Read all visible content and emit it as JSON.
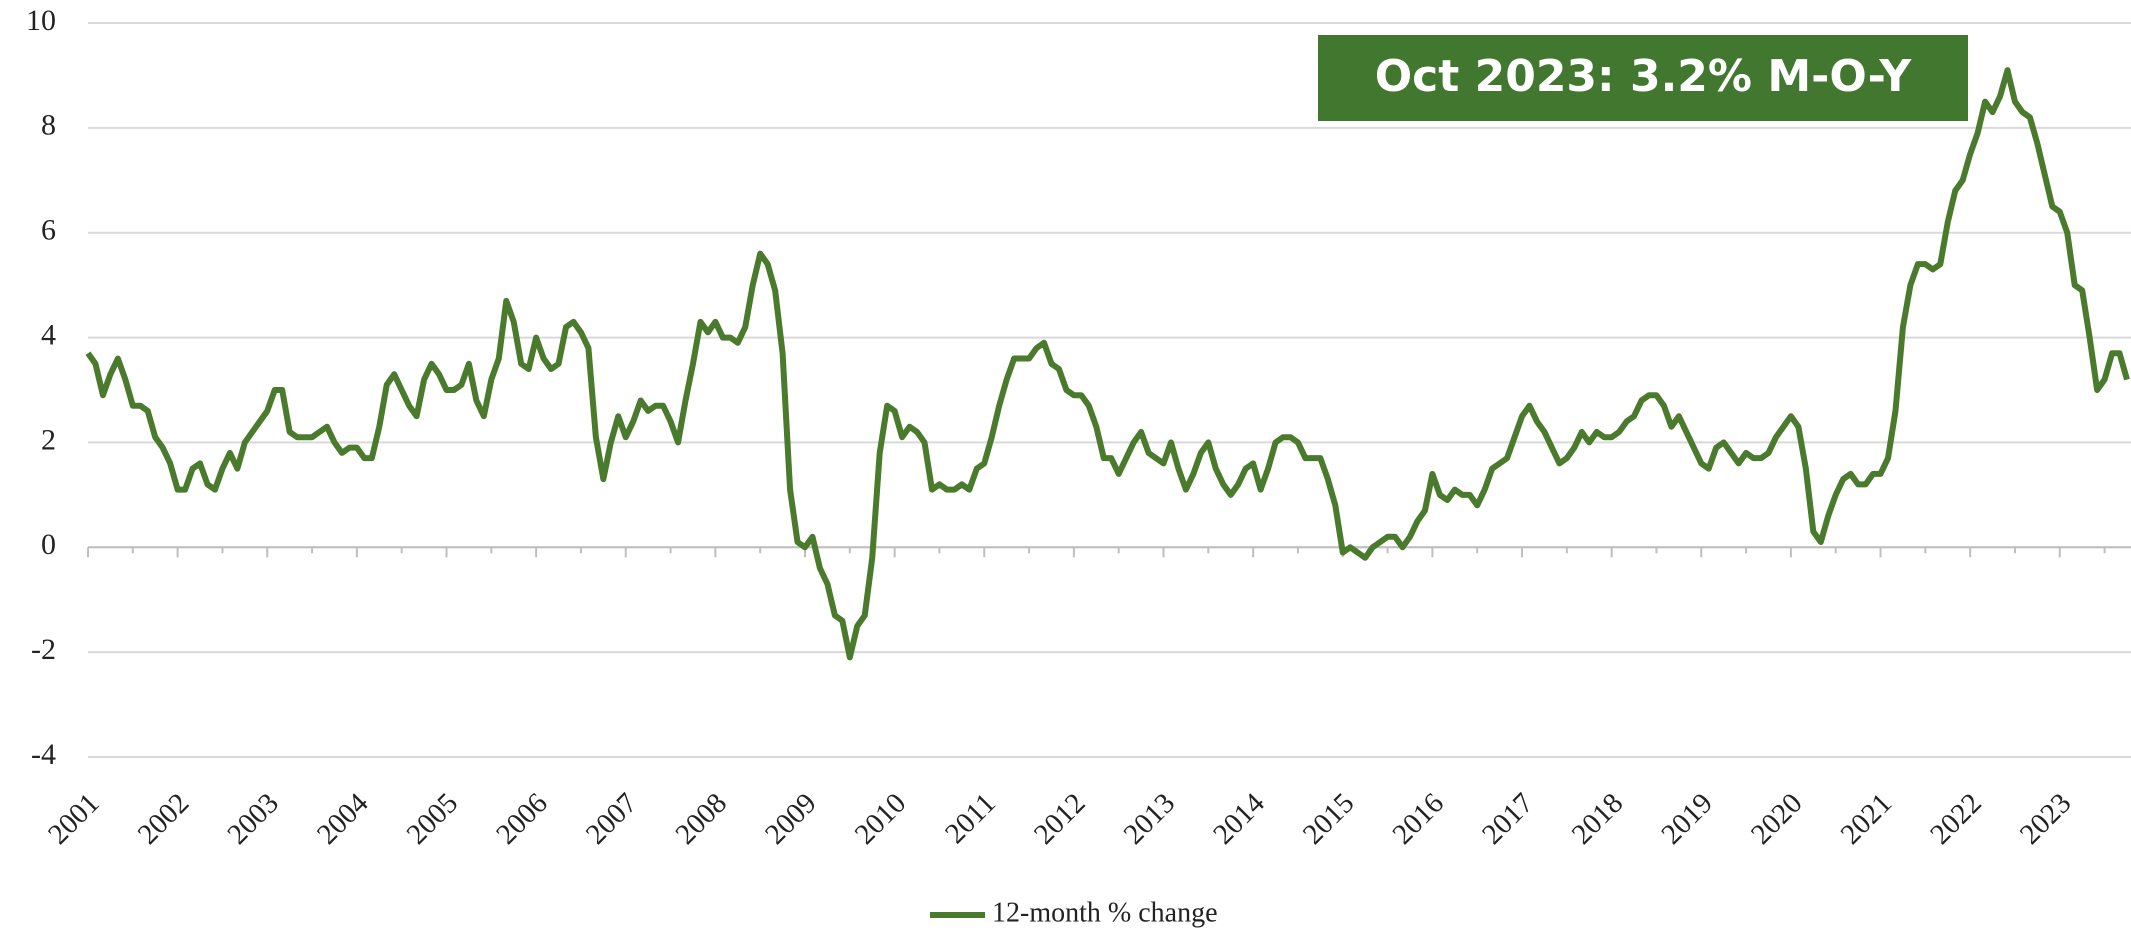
{
  "chart_data": {
    "type": "line",
    "annotation": "Oct 2023: 3.2% M-O-Y",
    "categories": [
      "2001",
      null,
      null,
      null,
      null,
      null,
      null,
      null,
      null,
      null,
      null,
      null,
      "2002",
      null,
      null,
      null,
      null,
      null,
      null,
      null,
      null,
      null,
      null,
      null,
      "2003",
      null,
      null,
      null,
      null,
      null,
      null,
      null,
      null,
      null,
      null,
      null,
      "2004",
      null,
      null,
      null,
      null,
      null,
      null,
      null,
      null,
      null,
      null,
      null,
      "2005",
      null,
      null,
      null,
      null,
      null,
      null,
      null,
      null,
      null,
      null,
      null,
      "2006",
      null,
      null,
      null,
      null,
      null,
      null,
      null,
      null,
      null,
      null,
      null,
      "2007",
      null,
      null,
      null,
      null,
      null,
      null,
      null,
      null,
      null,
      null,
      null,
      "2008",
      null,
      null,
      null,
      null,
      null,
      null,
      null,
      null,
      null,
      null,
      null,
      "2009",
      null,
      null,
      null,
      null,
      null,
      null,
      null,
      null,
      null,
      null,
      null,
      "2010",
      null,
      null,
      null,
      null,
      null,
      null,
      null,
      null,
      null,
      null,
      null,
      "2011",
      null,
      null,
      null,
      null,
      null,
      null,
      null,
      null,
      null,
      null,
      null,
      "2012",
      null,
      null,
      null,
      null,
      null,
      null,
      null,
      null,
      null,
      null,
      null,
      "2013",
      null,
      null,
      null,
      null,
      null,
      null,
      null,
      null,
      null,
      null,
      null,
      "2014",
      null,
      null,
      null,
      null,
      null,
      null,
      null,
      null,
      null,
      null,
      null,
      "2015",
      null,
      null,
      null,
      null,
      null,
      null,
      null,
      null,
      null,
      null,
      null,
      "2016",
      null,
      null,
      null,
      null,
      null,
      null,
      null,
      null,
      null,
      null,
      null,
      "2017",
      null,
      null,
      null,
      null,
      null,
      null,
      null,
      null,
      null,
      null,
      null,
      "2018",
      null,
      null,
      null,
      null,
      null,
      null,
      null,
      null,
      null,
      null,
      null,
      "2019",
      null,
      null,
      null,
      null,
      null,
      null,
      null,
      null,
      null,
      null,
      null,
      "2020",
      null,
      null,
      null,
      null,
      null,
      null,
      null,
      null,
      null,
      null,
      null,
      "2021",
      null,
      null,
      null,
      null,
      null,
      null,
      null,
      null,
      null,
      null,
      null,
      "2022",
      null,
      null,
      null,
      null,
      null,
      null,
      null,
      null,
      null,
      null,
      null,
      "2023",
      null,
      null,
      null,
      null,
      null,
      null,
      null,
      null,
      null
    ],
    "series": [
      {
        "name": "12-month % change",
        "color": "#4a7a2c",
        "values": [
          3.7,
          3.5,
          2.9,
          3.3,
          3.6,
          3.2,
          2.7,
          2.7,
          2.6,
          2.1,
          1.9,
          1.6,
          1.1,
          1.1,
          1.5,
          1.6,
          1.2,
          1.1,
          1.5,
          1.8,
          1.5,
          2.0,
          2.2,
          2.4,
          2.6,
          3.0,
          3.0,
          2.2,
          2.1,
          2.1,
          2.1,
          2.2,
          2.3,
          2.0,
          1.8,
          1.9,
          1.9,
          1.7,
          1.7,
          2.3,
          3.1,
          3.3,
          3.0,
          2.7,
          2.5,
          3.2,
          3.5,
          3.3,
          3.0,
          3.0,
          3.1,
          3.5,
          2.8,
          2.5,
          3.2,
          3.6,
          4.7,
          4.3,
          3.5,
          3.4,
          4.0,
          3.6,
          3.4,
          3.5,
          4.2,
          4.3,
          4.1,
          3.8,
          2.1,
          1.3,
          2.0,
          2.5,
          2.1,
          2.4,
          2.8,
          2.6,
          2.7,
          2.7,
          2.4,
          2.0,
          2.8,
          3.5,
          4.3,
          4.1,
          4.3,
          4.0,
          4.0,
          3.9,
          4.2,
          5.0,
          5.6,
          5.4,
          4.9,
          3.7,
          1.1,
          0.1,
          0.0,
          0.2,
          -0.4,
          -0.7,
          -1.3,
          -1.4,
          -2.1,
          -1.5,
          -1.3,
          -0.2,
          1.8,
          2.7,
          2.6,
          2.1,
          2.3,
          2.2,
          2.0,
          1.1,
          1.2,
          1.1,
          1.1,
          1.2,
          1.1,
          1.5,
          1.6,
          2.1,
          2.7,
          3.2,
          3.6,
          3.6,
          3.6,
          3.8,
          3.9,
          3.5,
          3.4,
          3.0,
          2.9,
          2.9,
          2.7,
          2.3,
          1.7,
          1.7,
          1.4,
          1.7,
          2.0,
          2.2,
          1.8,
          1.7,
          1.6,
          2.0,
          1.5,
          1.1,
          1.4,
          1.8,
          2.0,
          1.5,
          1.2,
          1.0,
          1.2,
          1.5,
          1.6,
          1.1,
          1.5,
          2.0,
          2.1,
          2.1,
          2.0,
          1.7,
          1.7,
          1.7,
          1.3,
          0.8,
          -0.1,
          0.0,
          -0.1,
          -0.2,
          0.0,
          0.1,
          0.2,
          0.2,
          0.0,
          0.2,
          0.5,
          0.7,
          1.4,
          1.0,
          0.9,
          1.1,
          1.0,
          1.0,
          0.8,
          1.1,
          1.5,
          1.6,
          1.7,
          2.1,
          2.5,
          2.7,
          2.4,
          2.2,
          1.9,
          1.6,
          1.7,
          1.9,
          2.2,
          2.0,
          2.2,
          2.1,
          2.1,
          2.2,
          2.4,
          2.5,
          2.8,
          2.9,
          2.9,
          2.7,
          2.3,
          2.5,
          2.2,
          1.9,
          1.6,
          1.5,
          1.9,
          2.0,
          1.8,
          1.6,
          1.8,
          1.7,
          1.7,
          1.8,
          2.1,
          2.3,
          2.5,
          2.3,
          1.5,
          0.3,
          0.1,
          0.6,
          1.0,
          1.3,
          1.4,
          1.2,
          1.2,
          1.4,
          1.4,
          1.7,
          2.6,
          4.2,
          5.0,
          5.4,
          5.4,
          5.3,
          5.4,
          6.2,
          6.8,
          7.0,
          7.5,
          7.9,
          8.5,
          8.3,
          8.6,
          9.1,
          8.5,
          8.3,
          8.2,
          7.7,
          7.1,
          6.5,
          6.4,
          6.0,
          5.0,
          4.9,
          4.0,
          3.0,
          3.2,
          3.7,
          3.7,
          3.2
        ]
      }
    ],
    "ylim": [
      -4,
      10
    ],
    "yticks": [
      -4,
      -2,
      0,
      2,
      4,
      6,
      8,
      10
    ],
    "grid": true,
    "legend": "bottom",
    "annotation_color": "#41772e"
  }
}
